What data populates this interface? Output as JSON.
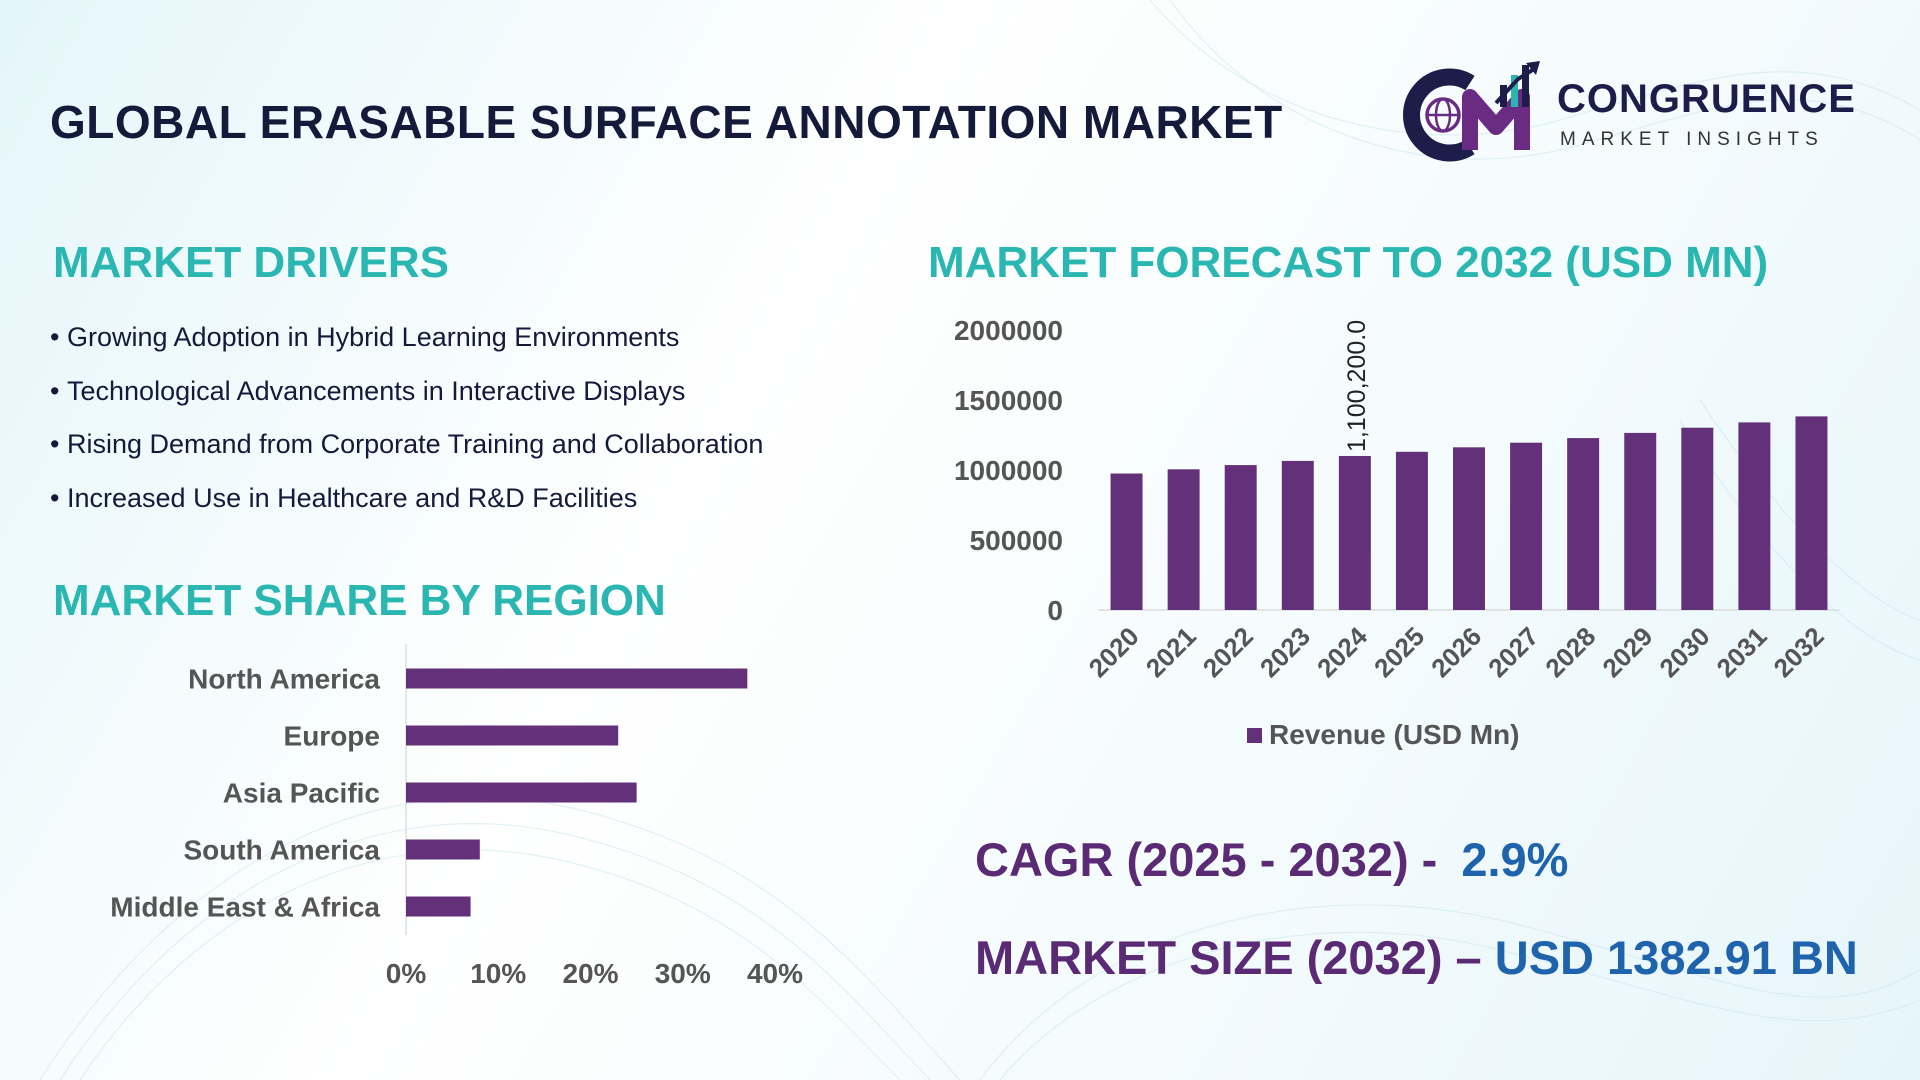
{
  "title": "GLOBAL ERASABLE SURFACE ANNOTATION MARKET",
  "logo": {
    "name": "CONGRUENCE",
    "tagline": "MARKET INSIGHTS",
    "colors": [
      "#1d1d4a",
      "#6a2c82",
      "#2ab6b1"
    ]
  },
  "drivers": {
    "heading": "MARKET DRIVERS",
    "bullet": "•",
    "items": [
      "Growing Adoption in Hybrid Learning Environments",
      "Technological Advancements in Interactive Displays",
      "Rising Demand from Corporate Training and Collaboration",
      "Increased Use in Healthcare and R&D Facilities"
    ]
  },
  "region": {
    "heading": "MARKET SHARE BY REGION"
  },
  "forecast": {
    "heading": "MARKET FORECAST TO 2032 (USD MN)"
  },
  "stats": {
    "cagr_label": "CAGR (2025 - 2032) -",
    "cagr_value": "2.9%",
    "size_label": "MARKET SIZE (2032) –",
    "size_value": "USD 1382.91 BN"
  },
  "colors": {
    "bar": "#63307a",
    "heading": "#2ab6b1",
    "title": "#141a3a",
    "stat_label": "#5a2a74",
    "stat_value": "#1f63ad",
    "axis_text": "#555555"
  },
  "chart_data": [
    {
      "type": "bar",
      "orientation": "horizontal",
      "categories": [
        "North America",
        "Europe",
        "Asia Pacific",
        "South America",
        "Middle East & Africa"
      ],
      "values": [
        37,
        23,
        25,
        8,
        7
      ],
      "xlim": [
        0,
        40
      ],
      "xticks": [
        "0%",
        "10%",
        "20%",
        "30%",
        "40%"
      ],
      "grid": false
    },
    {
      "type": "bar",
      "categories": [
        "2020",
        "2021",
        "2022",
        "2023",
        "2024",
        "2025",
        "2026",
        "2027",
        "2028",
        "2029",
        "2030",
        "2031",
        "2032"
      ],
      "series": [
        {
          "name": "Revenue (USD Mn)",
          "values": [
            975000,
            1005000,
            1035000,
            1065000,
            1100200,
            1130000,
            1162000,
            1195000,
            1228000,
            1265000,
            1302000,
            1340000,
            1382910
          ]
        }
      ],
      "ylim": [
        0,
        2000000
      ],
      "yticks": [
        "0",
        "500000",
        "1000000",
        "1500000",
        "2000000"
      ],
      "data_labels": [
        {
          "index": 4,
          "text": "1,100,200.0"
        }
      ],
      "legend_position": "bottom",
      "grid": false
    }
  ]
}
